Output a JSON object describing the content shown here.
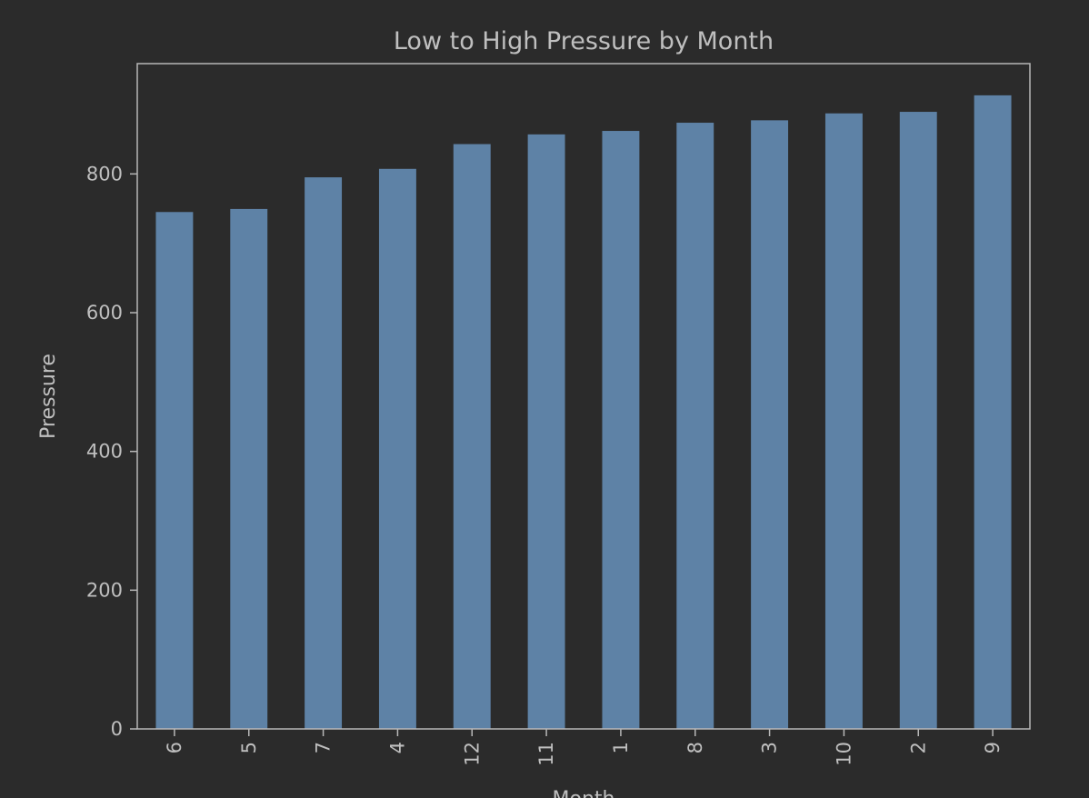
{
  "chart_data": {
    "type": "bar",
    "title": "Low to High Pressure by Month",
    "xlabel": "Month",
    "ylabel": "Pressure",
    "categories": [
      "6",
      "5",
      "7",
      "4",
      "12",
      "11",
      "1",
      "8",
      "3",
      "10",
      "2",
      "9"
    ],
    "values": [
      745.1,
      749.5,
      795.1,
      807.3,
      843.0,
      857.0,
      862.0,
      873.8,
      877.3,
      887.3,
      889.5,
      913.3
    ],
    "yticks": [
      0,
      200,
      400,
      600,
      800
    ],
    "ylim": [
      0,
      959
    ],
    "grid": false,
    "legend": "none",
    "colors": {
      "background": "#2b2b2b",
      "bar": "#5e82a6",
      "axis": "#b8b8b8",
      "text": "#bfbfbf"
    }
  }
}
